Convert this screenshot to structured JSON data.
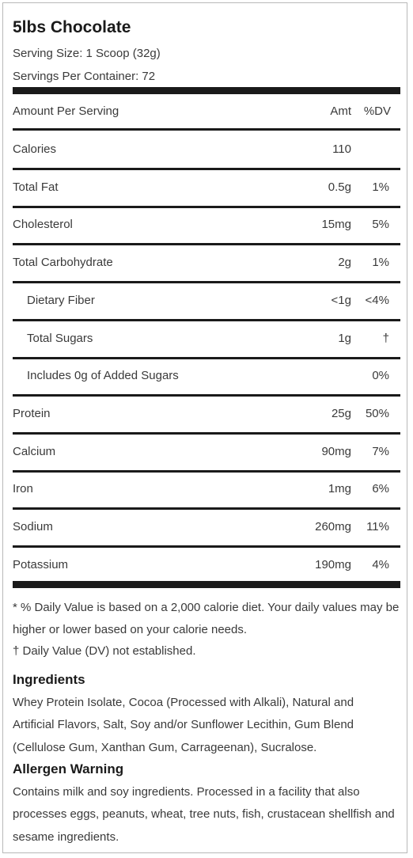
{
  "title": "5lbs Chocolate",
  "serving_size": "Serving Size: 1 Scoop (32g)",
  "servings_per_container": "Servings Per Container: 72",
  "header": {
    "label": "Amount Per Serving",
    "amt": "Amt",
    "dv": "%DV"
  },
  "rows": [
    {
      "label": "Calories",
      "amt": "110",
      "dv": ""
    },
    {
      "label": "Total Fat",
      "amt": "0.5g",
      "dv": "1%"
    },
    {
      "label": "Cholesterol",
      "amt": "15mg",
      "dv": "5%"
    },
    {
      "label": "Total Carbohydrate",
      "amt": "2g",
      "dv": "1%"
    },
    {
      "label": "Dietary Fiber",
      "amt": "<1g",
      "dv": "<4%"
    },
    {
      "label": "Total Sugars",
      "amt": "1g",
      "dv": "†"
    },
    {
      "label": "Includes 0g of Added Sugars",
      "amt": "",
      "dv": "0%"
    },
    {
      "label": "Protein",
      "amt": "25g",
      "dv": "50%"
    },
    {
      "label": "Calcium",
      "amt": "90mg",
      "dv": "7%"
    },
    {
      "label": "Iron",
      "amt": "1mg",
      "dv": "6%"
    },
    {
      "label": "Sodium",
      "amt": "260mg",
      "dv": "11%"
    },
    {
      "label": "Potassium",
      "amt": "190mg",
      "dv": "4%"
    }
  ],
  "footnote_dv": "* % Daily Value is based on a 2,000 calorie diet. Your daily values may be higher or lower based on your calorie needs.",
  "footnote_dagger": "† Daily Value (DV) not established.",
  "ingredients": {
    "heading": "Ingredients",
    "text": "Whey Protein Isolate, Cocoa (Processed with Alkali), Natural and Artificial Flavors, Salt, Soy and/or Sunflower Lecithin, Gum Blend (Cellulose Gum, Xanthan Gum, Carrageenan), Sucralose."
  },
  "allergen": {
    "heading": "Allergen Warning",
    "text": "Contains milk and soy ingredients. Processed in a facility that also processes eggs, peanuts, wheat, tree nuts, fish, crustacean shellfish and sesame ingredients."
  }
}
